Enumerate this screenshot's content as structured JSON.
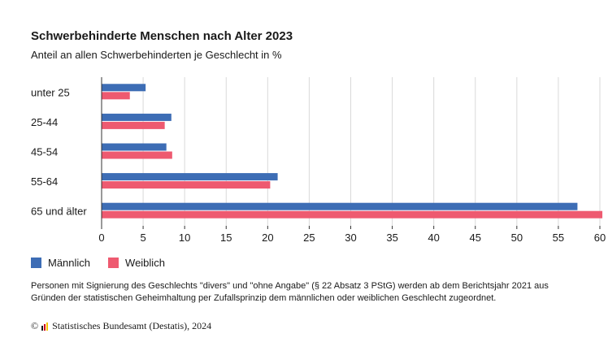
{
  "chart_data": {
    "type": "bar",
    "orientation": "horizontal",
    "title": "Schwerbehinderte Menschen nach Alter 2023",
    "subtitle": "Anteil an allen Schwerbehinderten je Geschlecht in %",
    "categories": [
      "unter 25",
      "25-44",
      "45-54",
      "55-64",
      "65 und älter"
    ],
    "series": [
      {
        "name": "Männlich",
        "color": "#3d6db5",
        "values": [
          5.3,
          8.4,
          7.8,
          21.2,
          57.3
        ]
      },
      {
        "name": "Weiblich",
        "color": "#ee5a70",
        "values": [
          3.4,
          7.6,
          8.5,
          20.3,
          60.3
        ]
      }
    ],
    "xlim": [
      0,
      60
    ],
    "xticks": [
      0,
      5,
      10,
      15,
      20,
      25,
      30,
      35,
      40,
      45,
      50,
      55,
      60
    ],
    "grid": true,
    "legend_position": "bottom-left"
  },
  "note": "Personen mit Signierung des Geschlechts \"divers\" und \"ohne Angabe\" (§ 22 Absatz 3 PStG) werden ab dem Berichtsjahr 2021 aus Gründen der statistischen Geheimhaltung per Zufallsprinzip dem männlichen oder weiblichen Geschlecht zugeordnet.",
  "footer": {
    "copyright": "©",
    "source": "Statistisches Bundesamt (Destatis), 2024"
  },
  "colors": {
    "gridline": "#d9d9d9",
    "axis": "#333333",
    "logo": [
      "#1a1a1a",
      "#d0021b",
      "#f5c400"
    ]
  }
}
